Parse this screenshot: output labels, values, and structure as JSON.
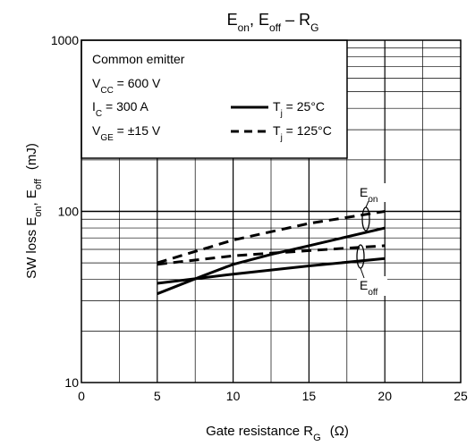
{
  "chart_data": {
    "type": "line",
    "title": {
      "main": "E",
      "sub1": "on",
      "mid": ", E",
      "sub2": "off",
      "dash": " – R",
      "sub3": "G"
    },
    "xlabel": {
      "main": "Gate resistance   R",
      "sub": "G",
      "unit": "(Ω)"
    },
    "ylabel": {
      "a": "SW loss   E",
      "a_sub": "on",
      "b": ", E",
      "b_sub": "off",
      "unit": "(mJ)"
    },
    "xlim": [
      0,
      25
    ],
    "ylim": [
      10,
      1000
    ],
    "yscale": "log",
    "grid": true,
    "x_ticks": [
      "0",
      "5",
      "10",
      "15",
      "20",
      "25"
    ],
    "y_ticks": [
      "10",
      "100",
      "1000"
    ],
    "conditions": {
      "line1": "Common emitter",
      "line2_main": "V",
      "line2_sub": "CC",
      "line2_rest": " = 600 V",
      "line3_main": "I",
      "line3_sub": "C",
      "line3_rest": " = 300 A",
      "line4_main": "V",
      "line4_sub": "GE",
      "line4_rest": " = ±15 V"
    },
    "legend": [
      {
        "style": "solid",
        "main": "T",
        "sub": "j",
        "rest": " = 25°C"
      },
      {
        "style": "dashed",
        "main": "T",
        "sub": "j",
        "rest": " = 125°C"
      }
    ],
    "annotations": [
      {
        "main": "E",
        "sub": "on"
      },
      {
        "main": "E",
        "sub": "off"
      }
    ],
    "series": [
      {
        "curve": "Eon",
        "style": "dashed",
        "x": [
          5,
          10,
          15,
          20
        ],
        "y": [
          50,
          68,
          85,
          100
        ]
      },
      {
        "curve": "Eon",
        "style": "solid",
        "x": [
          5,
          8,
          10,
          12.5,
          15,
          20
        ],
        "y": [
          33,
          42,
          49,
          56,
          63,
          80
        ]
      },
      {
        "curve": "Eoff",
        "style": "dashed",
        "x": [
          5,
          10,
          15,
          20
        ],
        "y": [
          49,
          55,
          59,
          63
        ]
      },
      {
        "curve": "Eoff",
        "style": "solid",
        "x": [
          5,
          10,
          15,
          20
        ],
        "y": [
          38,
          43,
          48,
          53
        ]
      }
    ]
  }
}
